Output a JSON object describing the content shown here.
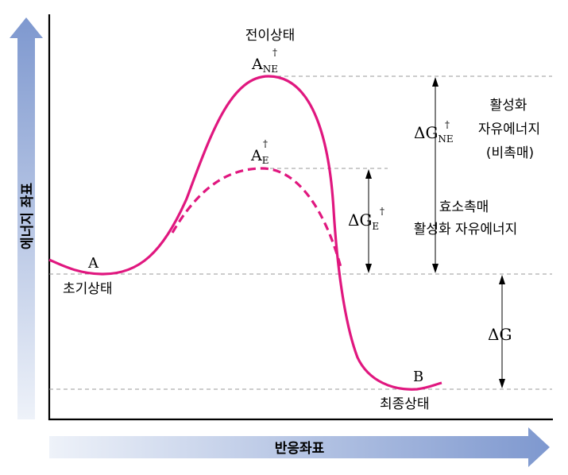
{
  "y_axis_label": "에너지 좌표",
  "x_axis_label": "반응좌표",
  "labels": {
    "transition_state": "전이상태",
    "ts_uncatalyzed": {
      "base": "A",
      "sub": "NE",
      "sup": "†"
    },
    "ts_enzyme": {
      "base": "A",
      "sub": "E",
      "sup": "†"
    },
    "initial_point": "A",
    "initial_state": "초기상태",
    "final_point": "B",
    "final_state": "최종상태",
    "dg_ne": {
      "base": "ΔG",
      "sub": "NE",
      "sup": "†"
    },
    "dg_e": {
      "base": "ΔG",
      "sub": "E",
      "sup": "†"
    },
    "dg": "ΔG",
    "uncatalyzed_line1": "활성화",
    "uncatalyzed_line2": "자유에너지",
    "uncatalyzed_line3": "(비촉매)",
    "enzyme_line1": "효소촉매",
    "enzyme_line2": "활성화 자유에너지"
  },
  "colors": {
    "curve": "#e0177f",
    "axis": "#000000",
    "arrow_gradient_dark": "#7e98cf",
    "arrow_gradient_light": "#e8eef8",
    "dashed_guides": "#9a9a9a"
  }
}
